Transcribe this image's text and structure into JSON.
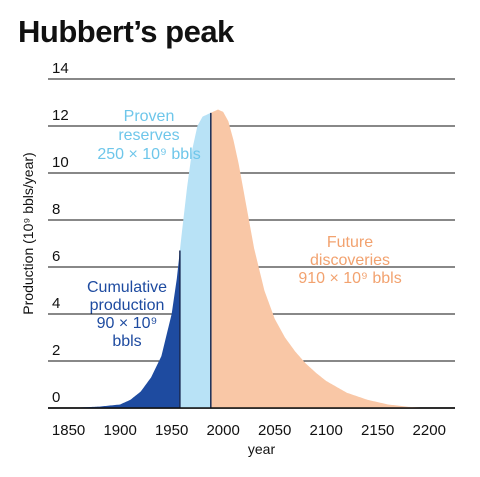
{
  "chart_data": {
    "type": "area",
    "title": "Hubbert’s peak",
    "xlabel": "year",
    "ylabel": "Production (10⁹ bbls/year)",
    "xlim": [
      1830,
      2225
    ],
    "ylim": [
      0,
      14
    ],
    "x_ticks": [
      1850,
      1900,
      1950,
      2000,
      2050,
      2100,
      2150,
      2200
    ],
    "y_ticks": [
      0,
      2,
      4,
      6,
      8,
      10,
      12,
      14
    ],
    "grid": "horizontal",
    "colors": {
      "cumulative": "#1e4ba0",
      "proven": "#b8e2f6",
      "future": "#f9c7a6",
      "proven_text": "#6ec6ea",
      "future_text": "#f2a26f",
      "cumulative_text": "#1e4ba0"
    },
    "curve": {
      "x": [
        1860,
        1880,
        1900,
        1910,
        1920,
        1930,
        1940,
        1950,
        1955,
        1960,
        1965,
        1970,
        1975,
        1980,
        1985,
        1990,
        1995,
        2000,
        2005,
        2010,
        2015,
        2020,
        2030,
        2040,
        2050,
        2060,
        2070,
        2080,
        2090,
        2100,
        2120,
        2140,
        2160,
        2180,
        2200
      ],
      "y": [
        0.02,
        0.06,
        0.15,
        0.35,
        0.7,
        1.3,
        2.2,
        4.0,
        5.5,
        7.5,
        9.4,
        11.0,
        12.0,
        12.4,
        12.5,
        12.6,
        12.7,
        12.6,
        12.2,
        11.4,
        10.4,
        9.2,
        6.8,
        5.0,
        3.8,
        3.0,
        2.4,
        1.9,
        1.5,
        1.15,
        0.65,
        0.35,
        0.15,
        0.05,
        0.0
      ]
    },
    "regions": [
      {
        "name": "Cumulative production",
        "from_year": 1860,
        "to_year": 1958
      },
      {
        "name": "Proven reserves",
        "from_year": 1958,
        "to_year": 1988
      },
      {
        "name": "Future discoveries",
        "from_year": 1988,
        "to_year": 2200
      }
    ],
    "annotations": {
      "proven": [
        "Proven",
        "reserves",
        "250 × 10⁹ bbls"
      ],
      "future": [
        "Future",
        "discoveries",
        "910 × 10⁹ bbls"
      ],
      "cumulative": [
        "Cumulative",
        "production",
        "90 × 10⁹",
        "bbls"
      ]
    }
  }
}
